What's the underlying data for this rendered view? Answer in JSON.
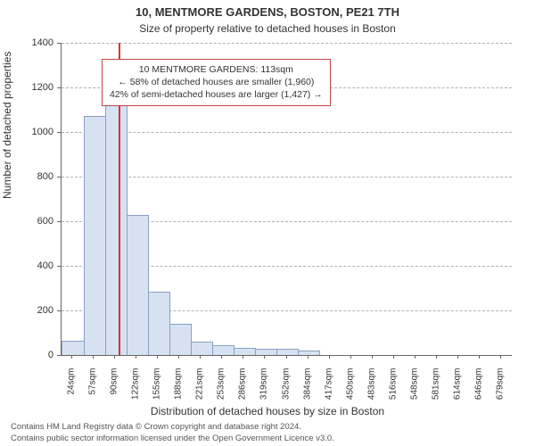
{
  "title_line1": "10, MENTMORE GARDENS, BOSTON, PE21 7TH",
  "title_line2": "Size of property relative to detached houses in Boston",
  "y_axis_label": "Number of detached properties",
  "x_axis_label": "Distribution of detached houses by size in Boston",
  "attribution_line1": "Contains HM Land Registry data © Crown copyright and database right 2024.",
  "attribution_line2": "Contains public sector information licensed under the Open Government Licence v3.0.",
  "chart": {
    "type": "histogram",
    "background_color": "#ffffff",
    "grid_color": "#b0b0b0",
    "axis_color": "#666666",
    "bar_fill": "#d6e2f2",
    "bar_stroke": "#8aa0c0",
    "marker_color": "#e03030",
    "text_color": "#333333",
    "title_fontsize": 13,
    "subtitle_fontsize": 12,
    "label_fontsize": 12,
    "tick_fontsize": 11,
    "xtick_fontsize": 10,
    "callout_fontsize": 10.5,
    "attrib_fontsize": 9.5,
    "ylim": [
      0,
      1400
    ],
    "ytick_step": 200,
    "x_categories": [
      "24sqm",
      "57sqm",
      "90sqm",
      "122sqm",
      "155sqm",
      "188sqm",
      "221sqm",
      "253sqm",
      "286sqm",
      "319sqm",
      "352sqm",
      "384sqm",
      "417sqm",
      "450sqm",
      "483sqm",
      "516sqm",
      "548sqm",
      "581sqm",
      "614sqm",
      "646sqm",
      "679sqm"
    ],
    "values": [
      60,
      1070,
      1175,
      625,
      280,
      135,
      55,
      40,
      30,
      25,
      25,
      15,
      0,
      0,
      0,
      0,
      0,
      0,
      0,
      0,
      0
    ],
    "marker_category_index": 2,
    "marker_fraction_within_bin": 0.7,
    "callout": {
      "border_color": "#c44444",
      "bg_color": "#ffffff",
      "lines": [
        "10 MENTMORE GARDENS: 113sqm",
        "← 58% of detached houses are smaller (1,960)",
        "42% of semi-detached houses are larger (1,427) →"
      ]
    }
  }
}
